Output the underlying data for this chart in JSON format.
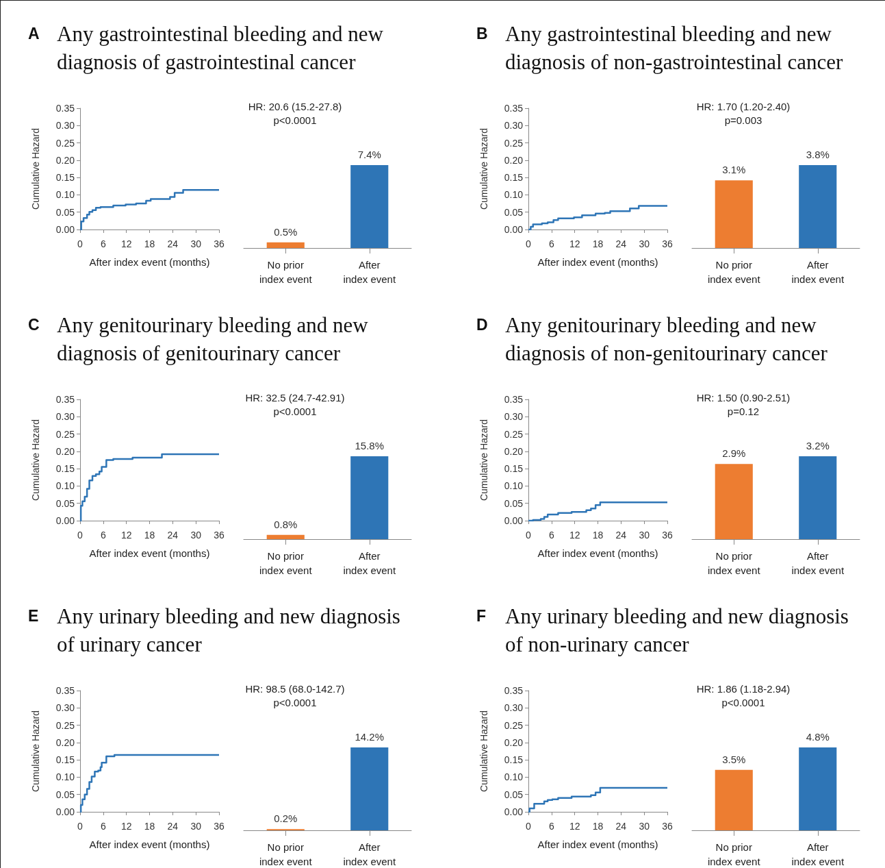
{
  "chart_data": [
    {
      "type": "step",
      "title": "Any gastrointestinal bleeding and new diagnosis of gastrointestinal cancer",
      "annotations": [
        "A"
      ],
      "xlabel": "After index event (months)",
      "ylabel": "Cumulative Hazard",
      "xlim": [
        0,
        36
      ],
      "xticks": [
        0,
        6,
        12,
        18,
        24,
        30,
        36
      ],
      "ylim": [
        0,
        0.35
      ],
      "yticks": [
        {
          "value": 0,
          "label": "0.00"
        },
        0.05,
        {
          "value": 0.1,
          "label": "0.10"
        },
        0.15,
        {
          "value": 0.2,
          "label": "0.20"
        },
        0.25,
        {
          "value": 0.3,
          "label": "0.30"
        },
        0.35
      ],
      "grid": false,
      "marker": "none",
      "color": "#2e75b6",
      "x": [
        0,
        0.3,
        0.9,
        1.8,
        2.4,
        3.2,
        4.1,
        5.3,
        8.6,
        11.8,
        14.5,
        17.1,
        18.3,
        23.3,
        24.5,
        26.7,
        36
      ],
      "values": [
        0,
        0.023,
        0.033,
        0.043,
        0.051,
        0.056,
        0.063,
        0.065,
        0.069,
        0.072,
        0.075,
        0.083,
        0.088,
        0.094,
        0.106,
        0.114,
        0.114
      ]
    },
    {
      "type": "bar",
      "categories": [
        "No prior\nindex event",
        "After\nindex event"
      ],
      "values": [
        0.5,
        7.4
      ],
      "colors": [
        "#ed7d31",
        "#2e75b6"
      ],
      "value_labels": [
        "0.5%",
        "7.4%"
      ],
      "annotations": [
        "HR: 20.6 (15.2-27.8)",
        "p<0.0001"
      ]
    },
    {
      "type": "step",
      "title": "Any gastrointestinal bleeding and new diagnosis of non-gastrointestinal cancer",
      "annotations": [
        "B"
      ],
      "xlabel": "After index event (months)",
      "ylabel": "Cumulative Hazard",
      "xlim": [
        0,
        36
      ],
      "xticks": [
        0,
        6,
        12,
        18,
        24,
        30,
        36
      ],
      "ylim": [
        0,
        0.35
      ],
      "yticks": [
        {
          "value": 0,
          "label": "0.00"
        },
        0.05,
        {
          "value": 0.1,
          "label": "0.10"
        },
        0.15,
        {
          "value": 0.2,
          "label": "0.20"
        },
        0.25,
        {
          "value": 0.3,
          "label": "0.30"
        },
        0.35
      ],
      "grid": false,
      "marker": "none",
      "color": "#2e75b6",
      "x": [
        0,
        0.6,
        1.2,
        3.5,
        5,
        6.5,
        7.7,
        11.8,
        13.9,
        17.4,
        19.8,
        21.2,
        26.3,
        28.6,
        36
      ],
      "values": [
        0,
        0.008,
        0.015,
        0.018,
        0.021,
        0.027,
        0.032,
        0.035,
        0.041,
        0.046,
        0.048,
        0.053,
        0.061,
        0.068,
        0.068
      ]
    },
    {
      "type": "bar",
      "categories": [
        "No prior\nindex event",
        "After\nindex event"
      ],
      "values": [
        3.1,
        3.8
      ],
      "colors": [
        "#ed7d31",
        "#2e75b6"
      ],
      "value_labels": [
        "3.1%",
        "3.8%"
      ],
      "annotations": [
        "HR: 1.70 (1.20-2.40)",
        "p=0.003"
      ]
    },
    {
      "type": "step",
      "title": "Any genitourinary bleeding and new diagnosis of genitourinary cancer",
      "annotations": [
        "C"
      ],
      "xlabel": "After index event (months)",
      "ylabel": "Cumulative Hazard",
      "xlim": [
        0,
        36
      ],
      "xticks": [
        0,
        6,
        12,
        18,
        24,
        30,
        36
      ],
      "ylim": [
        0,
        0.35
      ],
      "yticks": [
        {
          "value": 0,
          "label": "0.00"
        },
        0.05,
        {
          "value": 0.1,
          "label": "0.10"
        },
        0.15,
        {
          "value": 0.2,
          "label": "0.20"
        },
        0.25,
        {
          "value": 0.3,
          "label": "0.30"
        },
        0.35
      ],
      "grid": false,
      "marker": "none",
      "color": "#2e75b6",
      "x": [
        0,
        0.2,
        0.6,
        1.2,
        1.8,
        2.4,
        3.2,
        4.1,
        5,
        5.6,
        6.8,
        8.6,
        13.6,
        21.2,
        36
      ],
      "values": [
        0,
        0.043,
        0.056,
        0.069,
        0.092,
        0.116,
        0.129,
        0.134,
        0.142,
        0.155,
        0.175,
        0.178,
        0.182,
        0.192,
        0.192
      ]
    },
    {
      "type": "bar",
      "categories": [
        "No prior\nindex event",
        "After\nindex event"
      ],
      "values": [
        0.8,
        15.8
      ],
      "colors": [
        "#ed7d31",
        "#2e75b6"
      ],
      "value_labels": [
        "0.8%",
        "15.8%"
      ],
      "annotations": [
        "HR: 32.5 (24.7-42.91)",
        "p<0.0001"
      ]
    },
    {
      "type": "step",
      "title": "Any genitourinary bleeding and new diagnosis of non-genitourinary cancer",
      "annotations": [
        "D"
      ],
      "xlabel": "After index event (months)",
      "ylabel": "Cumulative Hazard",
      "xlim": [
        0,
        36
      ],
      "xticks": [
        0,
        6,
        12,
        18,
        24,
        30,
        36
      ],
      "ylim": [
        0,
        0.35
      ],
      "yticks": [
        {
          "value": 0,
          "label": "0.00"
        },
        0.05,
        {
          "value": 0.1,
          "label": "0.10"
        },
        0.15,
        {
          "value": 0.2,
          "label": "0.20"
        },
        0.25,
        {
          "value": 0.3,
          "label": "0.30"
        },
        0.35
      ],
      "grid": false,
      "marker": "none",
      "color": "#2e75b6",
      "x": [
        0,
        1.2,
        3.2,
        4.1,
        5,
        7.7,
        11.2,
        15,
        16.2,
        17.4,
        18.6,
        36
      ],
      "values": [
        0,
        0.002,
        0.005,
        0.011,
        0.018,
        0.022,
        0.025,
        0.03,
        0.035,
        0.045,
        0.053,
        0.053
      ]
    },
    {
      "type": "bar",
      "categories": [
        "No prior\nindex event",
        "After\nindex event"
      ],
      "values": [
        2.9,
        3.2
      ],
      "colors": [
        "#ed7d31",
        "#2e75b6"
      ],
      "value_labels": [
        "2.9%",
        "3.2%"
      ],
      "annotations": [
        "HR: 1.50 (0.90-2.51)",
        "p=0.12"
      ]
    },
    {
      "type": "step",
      "title": "Any urinary bleeding and new diagnosis of urinary cancer",
      "annotations": [
        "E"
      ],
      "xlabel": "After index event (months)",
      "ylabel": "Cumulative Hazard",
      "xlim": [
        0,
        36
      ],
      "xticks": [
        0,
        6,
        12,
        18,
        24,
        30,
        36
      ],
      "ylim": [
        0,
        0.35
      ],
      "yticks": [
        {
          "value": 0,
          "label": "0.00"
        },
        0.05,
        {
          "value": 0.1,
          "label": "0.10"
        },
        0.15,
        {
          "value": 0.2,
          "label": "0.20"
        },
        0.25,
        {
          "value": 0.3,
          "label": "0.30"
        },
        0.35
      ],
      "grid": false,
      "marker": "none",
      "color": "#2e75b6",
      "x": [
        0,
        0.2,
        0.6,
        1.2,
        1.8,
        2.4,
        3,
        3.8,
        4.7,
        5.3,
        5.6,
        6.8,
        8.9,
        36
      ],
      "values": [
        0,
        0.02,
        0.036,
        0.05,
        0.066,
        0.086,
        0.102,
        0.116,
        0.119,
        0.129,
        0.142,
        0.16,
        0.164,
        0.164
      ]
    },
    {
      "type": "bar",
      "categories": [
        "No prior\nindex event",
        "After\nindex event"
      ],
      "values": [
        0.2,
        14.2
      ],
      "colors": [
        "#ed7d31",
        "#2e75b6"
      ],
      "value_labels": [
        "0.2%",
        "14.2%"
      ],
      "annotations": [
        "HR: 98.5 (68.0-142.7)",
        "p<0.0001"
      ]
    },
    {
      "type": "step",
      "title": "Any urinary bleeding and new diagnosis of non-urinary cancer",
      "annotations": [
        "F"
      ],
      "xlabel": "After index event (months)",
      "ylabel": "Cumulative Hazard",
      "xlim": [
        0,
        36
      ],
      "xticks": [
        0,
        6,
        12,
        18,
        24,
        30,
        36
      ],
      "ylim": [
        0,
        0.35
      ],
      "yticks": [
        {
          "value": 0,
          "label": "0.00"
        },
        0.05,
        {
          "value": 0.1,
          "label": "0.10"
        },
        0.15,
        {
          "value": 0.2,
          "label": "0.20"
        },
        0.25,
        {
          "value": 0.3,
          "label": "0.30"
        },
        0.35
      ],
      "grid": false,
      "marker": "none",
      "color": "#2e75b6",
      "x": [
        0,
        0.3,
        1.5,
        4.1,
        5,
        6.2,
        7.7,
        11.2,
        16.2,
        17.4,
        18.6,
        36
      ],
      "values": [
        0,
        0.01,
        0.023,
        0.03,
        0.034,
        0.036,
        0.04,
        0.044,
        0.048,
        0.056,
        0.069,
        0.069
      ]
    },
    {
      "type": "bar",
      "categories": [
        "No prior\nindex event",
        "After\nindex event"
      ],
      "values": [
        3.5,
        4.8
      ],
      "colors": [
        "#ed7d31",
        "#2e75b6"
      ],
      "value_labels": [
        "3.5%",
        "4.8%"
      ],
      "annotations": [
        "HR: 1.86 (1.18-2.94)",
        "p<0.0001"
      ]
    }
  ]
}
